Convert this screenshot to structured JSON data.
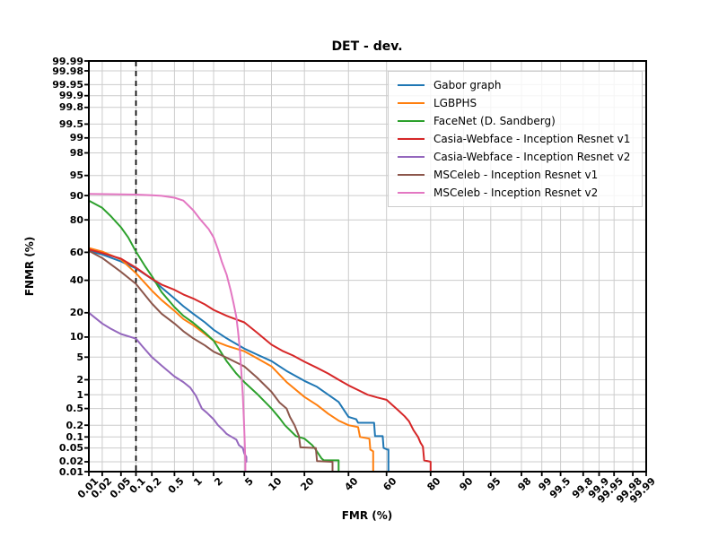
{
  "title": "DET - dev.",
  "axes": {
    "xlabel": "FMR (%)",
    "ylabel": "FNMR (%)",
    "scale": "probit-percent",
    "ticks_percent": [
      0.01,
      0.02,
      0.05,
      0.1,
      0.2,
      0.5,
      1,
      2,
      5,
      10,
      20,
      40,
      60,
      80,
      90,
      95,
      98,
      99,
      99.5,
      99.8,
      99.9,
      99.95,
      99.98,
      99.99
    ],
    "tick_labels": [
      "0.01",
      "0.02",
      "0.05",
      "0.1",
      "0.2",
      "0.5",
      "1",
      "2",
      "5",
      "10",
      "20",
      "40",
      "60",
      "80",
      "90",
      "95",
      "98",
      "99",
      "99.5",
      "99.8",
      "99.9",
      "99.95",
      "99.98",
      "99.99"
    ],
    "grid_color": "#cccccc",
    "spine_color": "#000000"
  },
  "threshold_line": {
    "fmr_percent": 0.1,
    "style": "dashed",
    "color": "#000000"
  },
  "chart_data": {
    "type": "line",
    "title": "DET - dev.",
    "xlabel": "FMR (%)",
    "ylabel": "FNMR (%)",
    "x_scale": "probit-percent",
    "y_scale": "probit-percent",
    "xlim": [
      0.01,
      99.99
    ],
    "ylim": [
      0.01,
      99.99
    ],
    "grid": true,
    "legend_position": "upper right",
    "series": [
      {
        "name": "Gabor graph",
        "color": "#1f77b4",
        "points": [
          [
            0.01,
            61
          ],
          [
            0.02,
            58.5
          ],
          [
            0.05,
            53.5
          ],
          [
            0.1,
            48.5
          ],
          [
            0.2,
            41
          ],
          [
            0.3,
            35
          ],
          [
            0.5,
            28
          ],
          [
            0.7,
            23.5
          ],
          [
            1,
            19.5
          ],
          [
            1.5,
            15.5
          ],
          [
            2,
            12.5
          ],
          [
            3,
            9.6
          ],
          [
            5,
            6.8
          ],
          [
            7,
            5.5
          ],
          [
            10,
            4.3
          ],
          [
            14,
            2.9
          ],
          [
            20,
            1.9
          ],
          [
            25,
            1.45
          ],
          [
            30,
            1.0
          ],
          [
            35,
            0.7
          ],
          [
            40,
            0.32
          ],
          [
            44,
            0.28
          ],
          [
            45,
            0.23
          ],
          [
            53.5,
            0.23
          ],
          [
            54,
            0.105
          ],
          [
            58,
            0.105
          ],
          [
            58.5,
            0.05
          ],
          [
            60.5,
            0.045
          ],
          [
            61,
            0.045
          ],
          [
            61,
            0.01
          ]
        ]
      },
      {
        "name": "LGBPHS",
        "color": "#ff7f0e",
        "points": [
          [
            0.01,
            63
          ],
          [
            0.02,
            60.5
          ],
          [
            0.05,
            55
          ],
          [
            0.1,
            45
          ],
          [
            0.2,
            33
          ],
          [
            0.3,
            27
          ],
          [
            0.5,
            21
          ],
          [
            0.7,
            17
          ],
          [
            1,
            14.3
          ],
          [
            1.5,
            11
          ],
          [
            2,
            8.9
          ],
          [
            3,
            7.5
          ],
          [
            5,
            6.2
          ],
          [
            7,
            4.8
          ],
          [
            10,
            3.5
          ],
          [
            14,
            1.8
          ],
          [
            20,
            0.9
          ],
          [
            25,
            0.6
          ],
          [
            30,
            0.38
          ],
          [
            35,
            0.26
          ],
          [
            40,
            0.2
          ],
          [
            45,
            0.18
          ],
          [
            46,
            0.1
          ],
          [
            51,
            0.09
          ],
          [
            51.5,
            0.045
          ],
          [
            53,
            0.04
          ],
          [
            53,
            0.01
          ]
        ]
      },
      {
        "name": "FaceNet (D. Sandberg)",
        "color": "#2ca02c",
        "points": [
          [
            0.01,
            88.3
          ],
          [
            0.02,
            85.5
          ],
          [
            0.03,
            82
          ],
          [
            0.05,
            76
          ],
          [
            0.07,
            70
          ],
          [
            0.1,
            60.5
          ],
          [
            0.15,
            50
          ],
          [
            0.2,
            43
          ],
          [
            0.3,
            32
          ],
          [
            0.5,
            23
          ],
          [
            0.7,
            18.5
          ],
          [
            1,
            15.3
          ],
          [
            1.5,
            11.5
          ],
          [
            2,
            8.9
          ],
          [
            3,
            4.3
          ],
          [
            4,
            2.6
          ],
          [
            5,
            1.8
          ],
          [
            7,
            1.05
          ],
          [
            10,
            0.5
          ],
          [
            12,
            0.3
          ],
          [
            13.5,
            0.2
          ],
          [
            17,
            0.105
          ],
          [
            20,
            0.09
          ],
          [
            23,
            0.06
          ],
          [
            24,
            0.05
          ],
          [
            27,
            0.025
          ],
          [
            28,
            0.022
          ],
          [
            35,
            0.022
          ],
          [
            35,
            0.01
          ]
        ]
      },
      {
        "name": "Casia-Webface - Inception Resnet v1",
        "color": "#d62728",
        "points": [
          [
            0.01,
            62
          ],
          [
            0.02,
            59.5
          ],
          [
            0.05,
            55.5
          ],
          [
            0.1,
            49
          ],
          [
            0.2,
            41
          ],
          [
            0.3,
            37
          ],
          [
            0.5,
            33.5
          ],
          [
            0.7,
            30.5
          ],
          [
            1,
            28
          ],
          [
            1.5,
            24.5
          ],
          [
            2,
            21.5
          ],
          [
            3,
            18.5
          ],
          [
            5,
            15.5
          ],
          [
            7,
            11.5
          ],
          [
            10,
            7.8
          ],
          [
            13,
            6.2
          ],
          [
            16,
            5.3
          ],
          [
            20,
            4.2
          ],
          [
            25,
            3.3
          ],
          [
            30,
            2.6
          ],
          [
            35,
            2.0
          ],
          [
            40,
            1.55
          ],
          [
            45,
            1.25
          ],
          [
            50,
            1.0
          ],
          [
            55,
            0.88
          ],
          [
            60,
            0.78
          ],
          [
            63,
            0.6
          ],
          [
            66,
            0.45
          ],
          [
            69,
            0.33
          ],
          [
            71,
            0.25
          ],
          [
            73,
            0.15
          ],
          [
            75,
            0.1
          ],
          [
            76,
            0.07
          ],
          [
            77,
            0.055
          ],
          [
            77.5,
            0.022
          ],
          [
            80,
            0.02
          ],
          [
            80,
            0.01
          ]
        ]
      },
      {
        "name": "Casia-Webface - Inception Resnet v2",
        "color": "#9467bd",
        "points": [
          [
            0.01,
            20
          ],
          [
            0.02,
            15
          ],
          [
            0.03,
            13
          ],
          [
            0.05,
            11
          ],
          [
            0.1,
            9.5
          ],
          [
            0.13,
            7.5
          ],
          [
            0.2,
            5
          ],
          [
            0.3,
            3.6
          ],
          [
            0.5,
            2.3
          ],
          [
            0.7,
            1.8
          ],
          [
            0.9,
            1.4
          ],
          [
            1.1,
            0.95
          ],
          [
            1.35,
            0.5
          ],
          [
            1.6,
            0.4
          ],
          [
            2,
            0.28
          ],
          [
            2.3,
            0.2
          ],
          [
            2.7,
            0.15
          ],
          [
            3,
            0.12
          ],
          [
            3.5,
            0.1
          ],
          [
            4,
            0.085
          ],
          [
            4.3,
            0.06
          ],
          [
            4.8,
            0.05
          ],
          [
            5,
            0.035
          ],
          [
            5.3,
            0.028
          ],
          [
            5.3,
            0.02
          ]
        ]
      },
      {
        "name": "MSCeleb - Inception Resnet v1",
        "color": "#8c564b",
        "points": [
          [
            0.01,
            61
          ],
          [
            0.02,
            56
          ],
          [
            0.05,
            46
          ],
          [
            0.1,
            37.5
          ],
          [
            0.2,
            25
          ],
          [
            0.3,
            19.5
          ],
          [
            0.5,
            15
          ],
          [
            0.7,
            12
          ],
          [
            1,
            9.6
          ],
          [
            1.5,
            7.6
          ],
          [
            2,
            6.1
          ],
          [
            3,
            4.9
          ],
          [
            5,
            3.5
          ],
          [
            7,
            2.2
          ],
          [
            10,
            1.15
          ],
          [
            12,
            0.68
          ],
          [
            14,
            0.5
          ],
          [
            15,
            0.32
          ],
          [
            16.5,
            0.2
          ],
          [
            18,
            0.105
          ],
          [
            18.5,
            0.052
          ],
          [
            24.5,
            0.05
          ],
          [
            25,
            0.021
          ],
          [
            31.5,
            0.02
          ],
          [
            32,
            0.02
          ],
          [
            32,
            0.01
          ]
        ]
      },
      {
        "name": "MSCeleb - Inception Resnet v2",
        "color": "#e377c2",
        "points": [
          [
            0.01,
            90.5
          ],
          [
            0.05,
            90.4
          ],
          [
            0.1,
            90.3
          ],
          [
            0.2,
            90.1
          ],
          [
            0.3,
            89.9
          ],
          [
            0.5,
            89.3
          ],
          [
            0.7,
            88.3
          ],
          [
            1,
            84.5
          ],
          [
            1.3,
            80
          ],
          [
            1.7,
            75
          ],
          [
            2,
            70
          ],
          [
            2.3,
            62
          ],
          [
            2.6,
            53
          ],
          [
            3,
            44
          ],
          [
            3.4,
            33
          ],
          [
            3.7,
            25
          ],
          [
            4,
            18
          ],
          [
            4.2,
            12
          ],
          [
            4.4,
            7
          ],
          [
            4.6,
            3
          ],
          [
            4.8,
            1
          ],
          [
            4.9,
            0.4
          ],
          [
            5,
            0.15
          ],
          [
            5.05,
            0.08
          ],
          [
            5.1,
            0.04
          ],
          [
            5.15,
            0.02
          ],
          [
            5.15,
            0.01
          ]
        ]
      }
    ]
  }
}
